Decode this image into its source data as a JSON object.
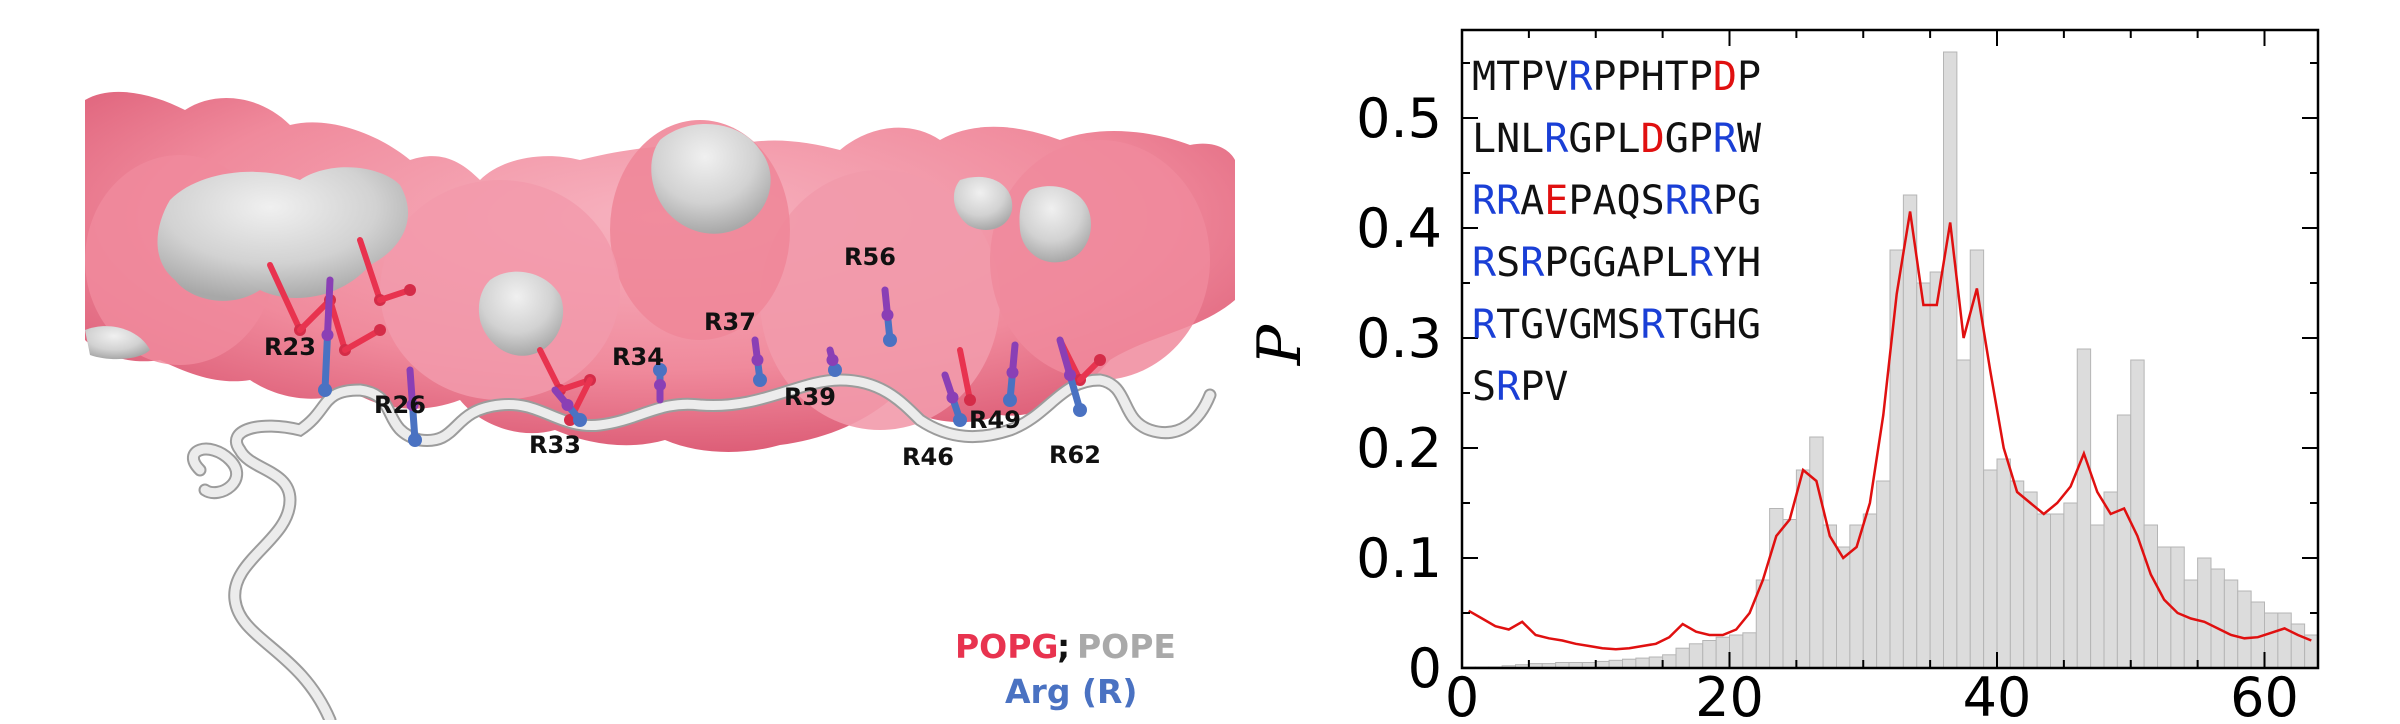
{
  "colors": {
    "popg": "#e8334f",
    "popg_surface": "#f08a9c",
    "pope": "#a9a9a9",
    "pope_surface": "#d4d4d4",
    "arg": "#4a72c2",
    "hist_fill": "#dcdcdc",
    "hist_edge": "#b5b5b5",
    "curve": "#e01010",
    "seq_arg": "#1a3fd6",
    "seq_acid": "#e01010",
    "seq_default": "#111111"
  },
  "residue_labels": [
    "R23",
    "R26",
    "R33",
    "R34",
    "R37",
    "R39",
    "R56",
    "R46",
    "R49",
    "R62"
  ],
  "legend": {
    "popg": "POPG",
    "sep": ";",
    "pope": "POPE",
    "arg": "Arg (R)"
  },
  "chart_data": {
    "type": "bar",
    "ylabel": "P",
    "xlabel": "",
    "xlim": [
      0,
      64
    ],
    "ylim": [
      0,
      0.58
    ],
    "xticks": [
      0,
      20,
      40,
      60
    ],
    "yticks": [
      0,
      0.1,
      0.2,
      0.3,
      0.4,
      0.5
    ],
    "grid": false,
    "histogram": {
      "bin_width": 1,
      "x": [
        0,
        1,
        2,
        3,
        4,
        5,
        6,
        7,
        8,
        9,
        10,
        11,
        12,
        13,
        14,
        15,
        16,
        17,
        18,
        19,
        20,
        21,
        22,
        23,
        24,
        25,
        26,
        27,
        28,
        29,
        30,
        31,
        32,
        33,
        34,
        35,
        36,
        37,
        38,
        39,
        40,
        41,
        42,
        43,
        44,
        45,
        46,
        47,
        48,
        49,
        50,
        51,
        52,
        53,
        54,
        55,
        56,
        57,
        58,
        59,
        60,
        61,
        62,
        63
      ],
      "values": [
        0.001,
        0.001,
        0.001,
        0.002,
        0.003,
        0.004,
        0.004,
        0.005,
        0.005,
        0.005,
        0.006,
        0.007,
        0.008,
        0.009,
        0.01,
        0.012,
        0.018,
        0.022,
        0.025,
        0.028,
        0.03,
        0.032,
        0.08,
        0.145,
        0.135,
        0.18,
        0.21,
        0.13,
        0.11,
        0.13,
        0.14,
        0.17,
        0.38,
        0.43,
        0.35,
        0.36,
        0.56,
        0.28,
        0.38,
        0.18,
        0.19,
        0.17,
        0.16,
        0.14,
        0.14,
        0.15,
        0.29,
        0.13,
        0.16,
        0.23,
        0.28,
        0.13,
        0.11,
        0.11,
        0.08,
        0.1,
        0.09,
        0.08,
        0.07,
        0.06,
        0.05,
        0.05,
        0.04,
        0.03
      ]
    },
    "curve": {
      "x": [
        0,
        1,
        2,
        3,
        4,
        5,
        6,
        7,
        8,
        9,
        10,
        11,
        12,
        13,
        14,
        15,
        16,
        17,
        18,
        19,
        20,
        21,
        22,
        23,
        24,
        25,
        26,
        27,
        28,
        29,
        30,
        31,
        32,
        33,
        34,
        35,
        36,
        37,
        38,
        39,
        40,
        41,
        42,
        43,
        44,
        45,
        46,
        47,
        48,
        49,
        50,
        51,
        52,
        53,
        54,
        55,
        56,
        57,
        58,
        59,
        60,
        61,
        62,
        63
      ],
      "values": [
        0.052,
        0.045,
        0.038,
        0.035,
        0.042,
        0.03,
        0.027,
        0.025,
        0.022,
        0.02,
        0.018,
        0.017,
        0.018,
        0.02,
        0.022,
        0.028,
        0.04,
        0.033,
        0.03,
        0.03,
        0.035,
        0.05,
        0.08,
        0.12,
        0.135,
        0.18,
        0.17,
        0.12,
        0.1,
        0.11,
        0.15,
        0.23,
        0.34,
        0.415,
        0.33,
        0.33,
        0.405,
        0.3,
        0.345,
        0.27,
        0.2,
        0.16,
        0.15,
        0.14,
        0.15,
        0.165,
        0.195,
        0.16,
        0.14,
        0.145,
        0.12,
        0.085,
        0.062,
        0.05,
        0.045,
        0.042,
        0.036,
        0.03,
        0.027,
        0.028,
        0.032,
        0.036,
        0.03,
        0.025
      ]
    }
  },
  "sequence": {
    "lines": [
      [
        {
          "t": "MTPV",
          "c": "d"
        },
        {
          "t": "R",
          "c": "b"
        },
        {
          "t": "PPHTP",
          "c": "d"
        },
        {
          "t": "D",
          "c": "r"
        },
        {
          "t": "P",
          "c": "d"
        }
      ],
      [
        {
          "t": "LNL",
          "c": "d"
        },
        {
          "t": "R",
          "c": "b"
        },
        {
          "t": "GPL",
          "c": "d"
        },
        {
          "t": "D",
          "c": "r"
        },
        {
          "t": "GP",
          "c": "d"
        },
        {
          "t": "R",
          "c": "b"
        },
        {
          "t": "W",
          "c": "d"
        }
      ],
      [
        {
          "t": "RR",
          "c": "b"
        },
        {
          "t": "A",
          "c": "d"
        },
        {
          "t": "E",
          "c": "r"
        },
        {
          "t": "PAQS",
          "c": "d"
        },
        {
          "t": "RR",
          "c": "b"
        },
        {
          "t": "PG",
          "c": "d"
        }
      ],
      [
        {
          "t": "R",
          "c": "b"
        },
        {
          "t": "S",
          "c": "d"
        },
        {
          "t": "R",
          "c": "b"
        },
        {
          "t": "PGGAPL",
          "c": "d"
        },
        {
          "t": "R",
          "c": "b"
        },
        {
          "t": "YH",
          "c": "d"
        }
      ],
      [
        {
          "t": "R",
          "c": "b"
        },
        {
          "t": "TGVGMS",
          "c": "d"
        },
        {
          "t": "R",
          "c": "b"
        },
        {
          "t": "TGHG",
          "c": "d"
        }
      ],
      [
        {
          "t": "S",
          "c": "d"
        },
        {
          "t": "R",
          "c": "b"
        },
        {
          "t": "PV",
          "c": "d"
        }
      ]
    ]
  }
}
